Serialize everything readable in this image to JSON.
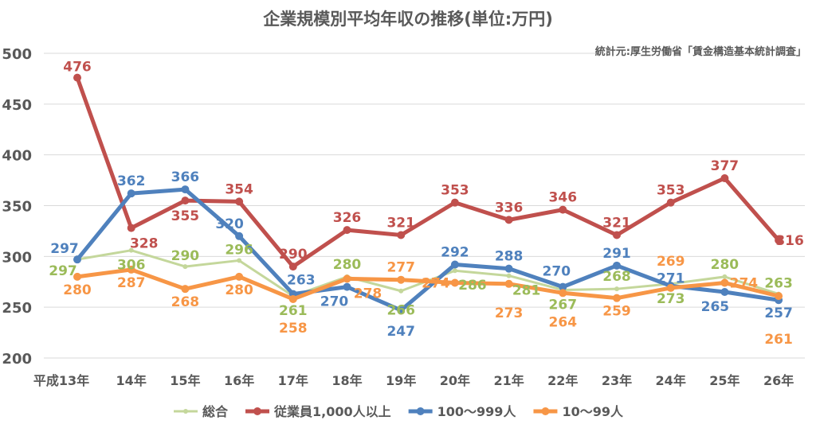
{
  "chart_data": {
    "type": "line",
    "title": "企業規模別平均年収の推移(単位:万円)",
    "annotation": "統計元:厚生労働省「賃金構造基本統計調査」",
    "categories": [
      "平成13年",
      "14年",
      "15年",
      "16年",
      "17年",
      "18年",
      "19年",
      "20年",
      "21年",
      "22年",
      "23年",
      "24年",
      "25年",
      "26年"
    ],
    "ylim": [
      200,
      500
    ],
    "yticks": [
      200,
      250,
      300,
      350,
      400,
      450,
      500
    ],
    "grid": true,
    "legend_position": "bottom",
    "series": [
      {
        "name": "総合",
        "color": "#9bbb59",
        "line_color": "#c4d79b",
        "values": [
          297,
          306,
          290,
          296,
          261,
          280,
          266,
          286,
          281,
          267,
          268,
          273,
          280,
          263
        ]
      },
      {
        "name": "従業員1,000人以上",
        "color": "#c0504d",
        "values": [
          476,
          328,
          355,
          354,
          290,
          326,
          321,
          353,
          336,
          346,
          321,
          353,
          377,
          316
        ]
      },
      {
        "name": "100〜999人",
        "color": "#4f81bd",
        "values": [
          297,
          362,
          366,
          320,
          263,
          270,
          247,
          292,
          288,
          270,
          291,
          271,
          265,
          257
        ]
      },
      {
        "name": "10〜99人",
        "color": "#f79646",
        "values": [
          280,
          287,
          268,
          280,
          258,
          278,
          277,
          274,
          273,
          264,
          259,
          269,
          274,
          261
        ]
      }
    ]
  }
}
